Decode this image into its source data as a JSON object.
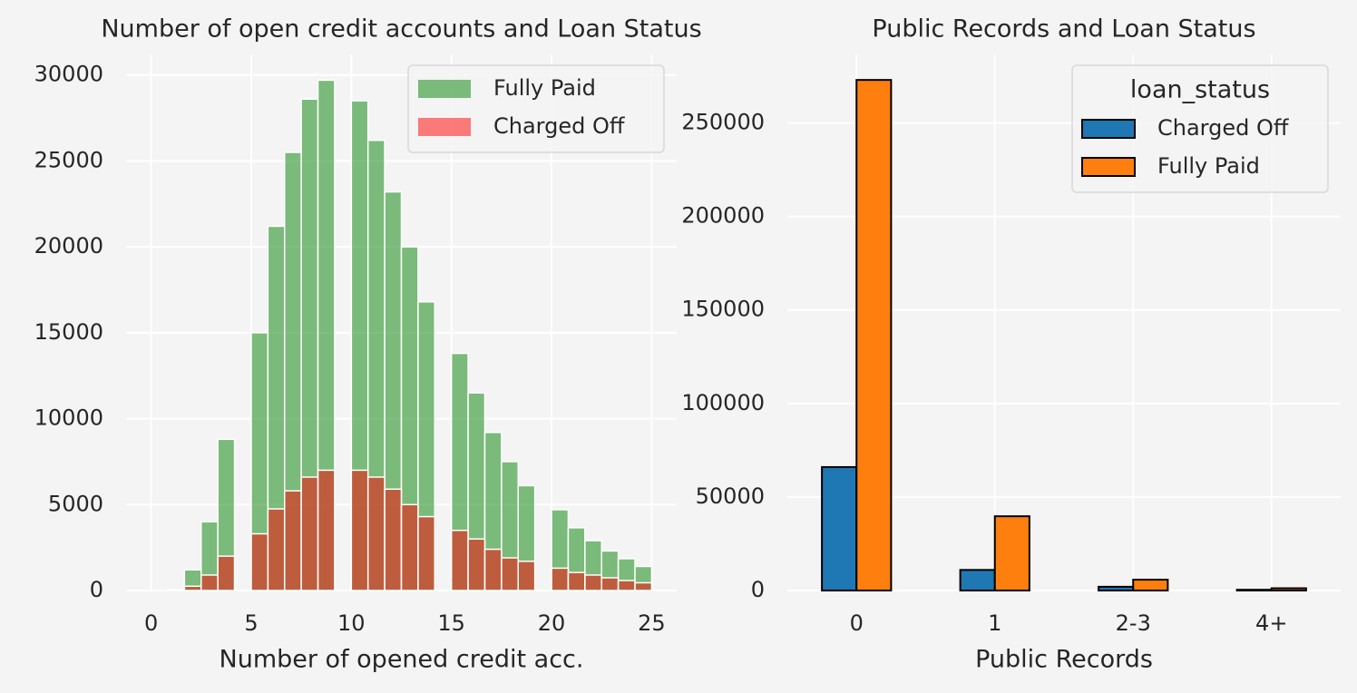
{
  "chart_data": [
    {
      "type": "histogram",
      "title": "Number of open credit accounts and Loan Status",
      "xlabel": "Number of opened credit acc.",
      "bins": [
        0,
        0.8333,
        1.6667,
        2.5,
        3.3333,
        4.1667,
        5,
        5.8333,
        6.6667,
        7.5,
        8.3333,
        9.1667,
        10,
        10.8333,
        11.6667,
        12.5,
        13.3333,
        14.1667,
        15,
        15.8333,
        16.6667,
        17.5,
        18.3333,
        19.1667,
        20,
        20.8333,
        21.6667,
        22.5,
        23.3333,
        24.1667,
        25
      ],
      "series": [
        {
          "name": "Fully Paid",
          "color": "#008000",
          "values": [
            10,
            50,
            1200,
            4000,
            8800,
            0,
            15000,
            21200,
            25500,
            28600,
            29700,
            0,
            28500,
            26200,
            23200,
            20000,
            16800,
            0,
            13800,
            11500,
            9200,
            7500,
            6100,
            0,
            4700,
            3650,
            2900,
            2300,
            1850,
            1400
          ]
        },
        {
          "name": "Charged Off",
          "color": "#ff0000",
          "values": [
            0,
            10,
            250,
            900,
            2000,
            0,
            3300,
            4750,
            5800,
            6600,
            7000,
            0,
            7000,
            6600,
            5900,
            5000,
            4300,
            0,
            3500,
            3000,
            2400,
            1900,
            1700,
            0,
            1300,
            1050,
            900,
            740,
            580,
            450
          ]
        }
      ],
      "alpha": 0.5,
      "edgecolor": "#ffffff",
      "xlim": [
        -1.25,
        26.25
      ],
      "xticks": [
        0,
        5,
        10,
        15,
        20,
        25
      ],
      "ylim": [
        0,
        31200
      ],
      "yticks": [
        0,
        5000,
        10000,
        15000,
        20000,
        25000,
        30000
      ],
      "grid": true,
      "legend": "upper right"
    },
    {
      "type": "bar",
      "title": "Public Records and Loan Status",
      "xlabel": "Public Records",
      "categories": [
        "0",
        "1",
        "2-3",
        "4+"
      ],
      "legend_title": "loan_status",
      "series": [
        {
          "name": "Charged Off",
          "color": "#1f77b4",
          "values": [
            66000,
            11000,
            2000,
            400
          ]
        },
        {
          "name": "Fully Paid",
          "color": "#ff7f0e",
          "values": [
            273000,
            39700,
            5800,
            1200
          ]
        }
      ],
      "alpha": 1,
      "edgecolor": "#000000",
      "ylim": [
        0,
        286650
      ],
      "yticks": [
        0,
        50000,
        100000,
        150000,
        200000,
        250000
      ],
      "grid": true,
      "legend": "upper right"
    }
  ]
}
